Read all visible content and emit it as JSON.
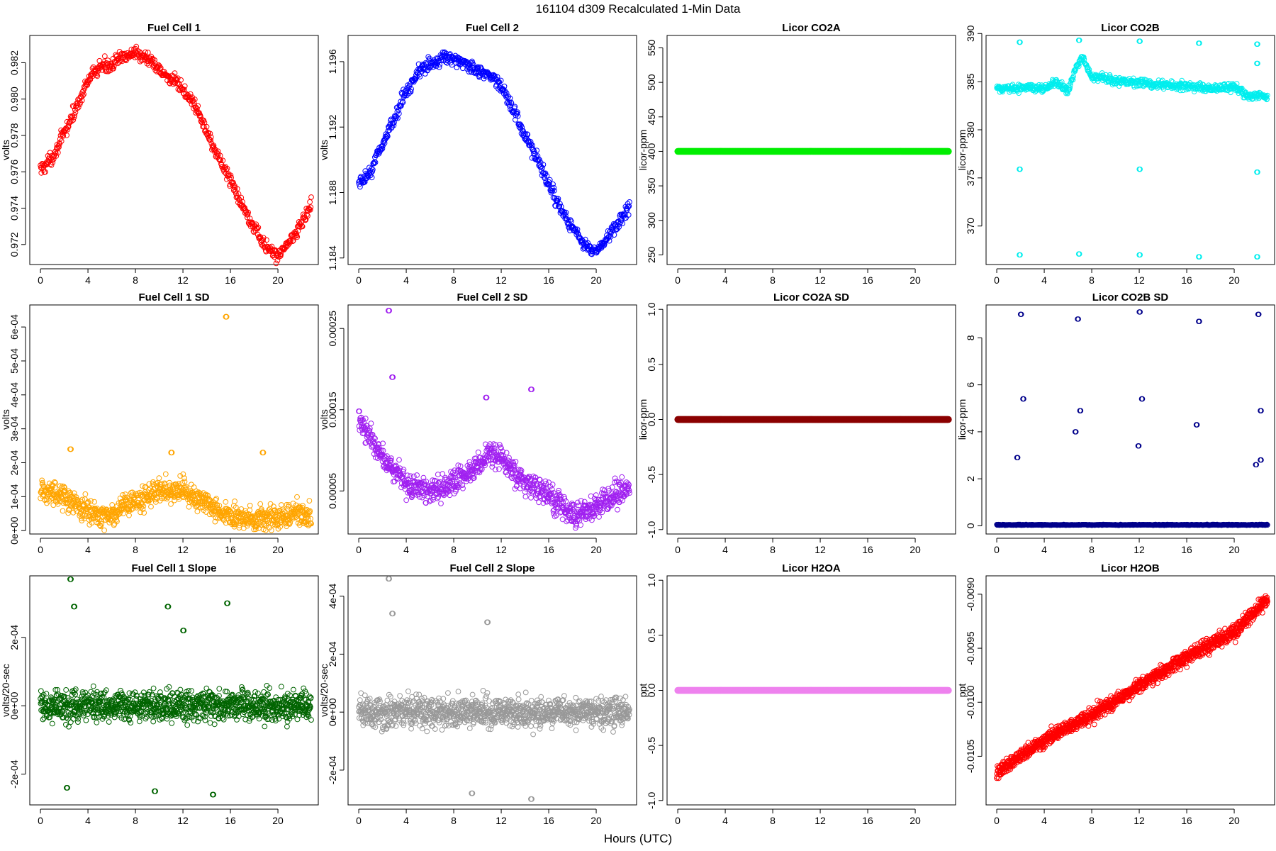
{
  "figure": {
    "title": "161104   d309   Recalculated 1-Min Data",
    "xlabel": "Hours (UTC)"
  },
  "chart_data": [
    {
      "type": "scatter",
      "title": "Fuel Cell 1",
      "ylabel": "volts",
      "color": "#ff0000",
      "xlim": [
        -0.9,
        23.4
      ],
      "ylim": [
        0.9709,
        0.9835
      ],
      "xticks": [
        0,
        4,
        8,
        12,
        16,
        20
      ],
      "xticklabels": [
        "0",
        "4",
        "8",
        "12",
        "16",
        "20"
      ],
      "yticks": [
        0.972,
        0.974,
        0.976,
        0.978,
        0.98,
        0.982
      ],
      "yticklabels": [
        "0.972",
        "0.974",
        "0.976",
        "0.978",
        "0.980",
        "0.982"
      ],
      "series": [
        {
          "x": [
            0,
            1,
            2,
            3,
            4,
            5,
            6,
            7,
            8,
            9,
            10,
            11,
            12,
            13,
            14,
            15,
            16,
            17,
            18,
            19,
            20,
            21,
            22,
            22.8
          ],
          "y": [
            0.9761,
            0.9768,
            0.9781,
            0.9795,
            0.981,
            0.9818,
            0.9819,
            0.9823,
            0.9826,
            0.9822,
            0.9816,
            0.9811,
            0.9805,
            0.9797,
            0.9782,
            0.9768,
            0.9755,
            0.9742,
            0.973,
            0.9718,
            0.9714,
            0.9722,
            0.9732,
            0.9742
          ]
        }
      ]
    },
    {
      "type": "scatter",
      "title": "Fuel Cell 2",
      "ylabel": "volts",
      "color": "#0000ff",
      "xlim": [
        -0.9,
        23.4
      ],
      "ylim": [
        1.1836,
        1.1976
      ],
      "xticks": [
        0,
        4,
        8,
        12,
        16,
        20
      ],
      "xticklabels": [
        "0",
        "4",
        "8",
        "12",
        "16",
        "20"
      ],
      "yticks": [
        1.184,
        1.188,
        1.192,
        1.196
      ],
      "yticklabels": [
        "1.184",
        "1.188",
        "1.192",
        "1.196"
      ],
      "series": [
        {
          "x": [
            0,
            1,
            2,
            3,
            4,
            5,
            6,
            7,
            8,
            9,
            10,
            11,
            12,
            13,
            14,
            15,
            16,
            17,
            18,
            19,
            20,
            21,
            22,
            22.8
          ],
          "y": [
            1.1884,
            1.1893,
            1.191,
            1.1925,
            1.1942,
            1.1954,
            1.1958,
            1.1963,
            1.1962,
            1.1958,
            1.1955,
            1.1952,
            1.1945,
            1.193,
            1.1915,
            1.19,
            1.1885,
            1.187,
            1.1858,
            1.1848,
            1.1843,
            1.1853,
            1.1862,
            1.1872
          ]
        }
      ]
    },
    {
      "type": "scatter",
      "title": "Licor CO2A",
      "ylabel": "licor-ppm",
      "color": "#00ee00",
      "xlim": [
        -0.9,
        23.4
      ],
      "ylim": [
        236,
        568
      ],
      "xticks": [
        0,
        4,
        8,
        12,
        16,
        20
      ],
      "xticklabels": [
        "0",
        "4",
        "8",
        "12",
        "16",
        "20"
      ],
      "yticks": [
        250,
        300,
        350,
        400,
        450,
        500,
        550
      ],
      "yticklabels": [
        "250",
        "300",
        "350",
        "400",
        "450",
        "500",
        "550"
      ],
      "series": [
        {
          "x": [
            0,
            22.8
          ],
          "y": [
            400,
            400
          ]
        }
      ]
    },
    {
      "type": "scatter",
      "title": "Licor CO2B",
      "ylabel": "licor-ppm",
      "color": "#00eeee",
      "xlim": [
        -0.9,
        23.4
      ],
      "ylim": [
        366.0,
        389.8
      ],
      "xticks": [
        0,
        4,
        8,
        12,
        16,
        20
      ],
      "xticklabels": [
        "0",
        "4",
        "8",
        "12",
        "16",
        "20"
      ],
      "yticks": [
        370,
        375,
        380,
        385,
        390
      ],
      "yticklabels": [
        "370",
        "375",
        "380",
        "385",
        "390"
      ],
      "series": [
        {
          "x": [
            0,
            2,
            4,
            5,
            6,
            6.8,
            7.2,
            8,
            10,
            12,
            14,
            16,
            18,
            20,
            21,
            22.8
          ],
          "y": [
            384.2,
            384.4,
            384.3,
            384.9,
            384.0,
            386.8,
            387.5,
            385.5,
            385.1,
            384.9,
            384.7,
            384.5,
            384.3,
            384.5,
            383.6,
            383.5
          ]
        }
      ],
      "outliers": {
        "x": [
          1.9,
          6.9,
          12.0,
          17.0,
          21.9
        ],
        "y": [
          [
            389.1,
            375.9,
            367.0
          ],
          [
            389.3,
            367.1
          ],
          [
            389.2,
            375.9,
            367.0
          ],
          [
            389.0,
            366.8
          ],
          [
            388.9,
            386.9,
            375.6,
            366.8
          ]
        ]
      }
    },
    {
      "type": "scatter",
      "title": "Fuel Cell 1 SD",
      "ylabel": "volts",
      "color": "#ffa500",
      "xlim": [
        -0.9,
        23.4
      ],
      "ylim": [
        -1e-05,
        0.000665
      ],
      "xticks": [
        0,
        4,
        8,
        12,
        16,
        20
      ],
      "xticklabels": [
        "0",
        "4",
        "8",
        "12",
        "16",
        "20"
      ],
      "yticks": [
        0,
        0.0001,
        0.0002,
        0.0003,
        0.0004,
        0.0005,
        0.0006
      ],
      "yticklabels": [
        "0e+00",
        "1e-04",
        "2e-04",
        "3e-04",
        "4e-04",
        "5e-04",
        "6e-04"
      ],
      "series": [
        {
          "x": [
            0,
            2,
            4,
            5,
            6,
            8,
            10,
            12,
            14,
            16,
            18,
            20,
            21,
            22.8
          ],
          "y": [
            0.00012,
            0.0001,
            6e-05,
            4e-05,
            5e-05,
            9e-05,
            0.00012,
            0.00012,
            8e-05,
            4e-05,
            3e-05,
            4e-05,
            5e-05,
            4e-05
          ]
        }
      ],
      "outliers": {
        "x": [
          15.6,
          2.5,
          11.0,
          18.7
        ],
        "y": [
          0.00063,
          0.00024,
          0.00023,
          0.00023
        ]
      }
    },
    {
      "type": "scatter",
      "title": "Fuel Cell 2 SD",
      "ylabel": "volts",
      "color": "#a020f0",
      "xlim": [
        -0.9,
        23.4
      ],
      "ylim": [
        -3e-06,
        0.000279
      ],
      "xticks": [
        0,
        4,
        8,
        12,
        16,
        20
      ],
      "xticklabels": [
        "0",
        "4",
        "8",
        "12",
        "16",
        "20"
      ],
      "yticks": [
        5e-05,
        0.00015,
        0.00025
      ],
      "yticklabels": [
        "0.00005",
        "0.00015",
        "0.00025"
      ],
      "series": [
        {
          "x": [
            0,
            1,
            2,
            4,
            6,
            8,
            10,
            11,
            12,
            14,
            16,
            18,
            20,
            22.8
          ],
          "y": [
            0.000135,
            0.000115,
            9e-05,
            6e-05,
            5e-05,
            6e-05,
            8e-05,
            9.5e-05,
            9e-05,
            6e-05,
            4.5e-05,
            2e-05,
            3e-05,
            5.5e-05
          ]
        }
      ],
      "outliers": {
        "x": [
          2.5,
          2.8,
          14.5,
          10.7
        ],
        "y": [
          0.000272,
          0.00019,
          0.000175,
          0.000165
        ]
      }
    },
    {
      "type": "scatter",
      "title": "Licor CO2A SD",
      "ylabel": "licor-ppm",
      "color": "#8b0000",
      "xlim": [
        -0.9,
        23.4
      ],
      "ylim": [
        -1.04,
        1.04
      ],
      "xticks": [
        0,
        4,
        8,
        12,
        16,
        20
      ],
      "xticklabels": [
        "0",
        "4",
        "8",
        "12",
        "16",
        "20"
      ],
      "yticks": [
        -1.0,
        -0.5,
        0.0,
        0.5,
        1.0
      ],
      "yticklabels": [
        "-1.0",
        "-0.5",
        "0.0",
        "0.5",
        "1.0"
      ],
      "series": [
        {
          "x": [
            0,
            22.8
          ],
          "y": [
            0,
            0
          ]
        }
      ]
    },
    {
      "type": "scatter",
      "title": "Licor CO2B SD",
      "ylabel": "licor-ppm",
      "color": "#00008b",
      "xlim": [
        -0.9,
        23.4
      ],
      "ylim": [
        -0.35,
        9.4
      ],
      "xticks": [
        0,
        4,
        8,
        12,
        16,
        20
      ],
      "xticklabels": [
        "0",
        "4",
        "8",
        "12",
        "16",
        "20"
      ],
      "yticks": [
        0,
        2,
        4,
        6,
        8
      ],
      "yticklabels": [
        "0",
        "2",
        "4",
        "6",
        "8"
      ],
      "series": [
        {
          "x": [
            0,
            22.8
          ],
          "y": [
            0.04,
            0.04
          ]
        }
      ],
      "outliers": {
        "x": [
          1.7,
          2.0,
          2.2,
          6.6,
          6.8,
          7.0,
          11.9,
          12.0,
          12.2,
          16.8,
          17.0,
          21.8,
          22.0,
          22.2,
          22.2
        ],
        "y": [
          2.9,
          9.0,
          5.4,
          4.0,
          8.8,
          4.9,
          3.4,
          9.1,
          5.4,
          4.3,
          8.7,
          2.6,
          9.0,
          4.9,
          2.8
        ]
      }
    },
    {
      "type": "scatter",
      "title": "Fuel Cell 1 Slope",
      "ylabel": "volts/20-sec",
      "color": "#006400",
      "xlim": [
        -0.9,
        23.4
      ],
      "ylim": [
        -0.00029,
        0.00038
      ],
      "xticks": [
        0,
        4,
        8,
        12,
        16,
        20
      ],
      "xticklabels": [
        "0",
        "4",
        "8",
        "12",
        "16",
        "20"
      ],
      "yticks": [
        -0.0002,
        0,
        0.0002
      ],
      "yticklabels": [
        "-2e-04",
        "0e+00",
        "2e-04"
      ],
      "series": [
        {
          "x": [
            0,
            22.8
          ],
          "y": [
            0,
            0
          ]
        }
      ],
      "outliers": {
        "x": [
          2.5,
          2.8,
          10.7,
          12.0,
          15.7,
          9.6,
          14.5,
          2.2
        ],
        "y": [
          0.00037,
          0.00029,
          0.00029,
          0.00022,
          0.0003,
          -0.00025,
          -0.00026,
          -0.00024
        ]
      }
    },
    {
      "type": "scatter",
      "title": "Fuel Cell 2 Slope",
      "ylabel": "volts/20-sec",
      "color": "#999999",
      "xlim": [
        -0.9,
        23.4
      ],
      "ylim": [
        -0.00032,
        0.00047
      ],
      "xticks": [
        0,
        4,
        8,
        12,
        16,
        20
      ],
      "xticklabels": [
        "0",
        "4",
        "8",
        "12",
        "16",
        "20"
      ],
      "yticks": [
        -0.0002,
        0,
        0.0002,
        0.0004
      ],
      "yticklabels": [
        "-2e-04",
        "0e+00",
        "2e-04",
        "4e-04"
      ],
      "series": [
        {
          "x": [
            0,
            22.8
          ],
          "y": [
            0,
            0
          ]
        }
      ],
      "outliers": {
        "x": [
          2.5,
          2.8,
          10.8,
          14.5,
          9.5
        ],
        "y": [
          0.00046,
          0.00034,
          0.00031,
          -0.0003,
          -0.00028
        ]
      }
    },
    {
      "type": "scatter",
      "title": "Licor H2OA",
      "ylabel": "ppt",
      "color": "#ee82ee",
      "xlim": [
        -0.9,
        23.4
      ],
      "ylim": [
        -1.04,
        1.04
      ],
      "xticks": [
        0,
        4,
        8,
        12,
        16,
        20
      ],
      "xticklabels": [
        "0",
        "4",
        "8",
        "12",
        "16",
        "20"
      ],
      "yticks": [
        -1.0,
        -0.5,
        0.0,
        0.5,
        1.0
      ],
      "yticklabels": [
        "-1.0",
        "-0.5",
        "0.0",
        "0.5",
        "1.0"
      ],
      "series": [
        {
          "x": [
            0,
            22.8
          ],
          "y": [
            0,
            0
          ]
        }
      ]
    },
    {
      "type": "scatter",
      "title": "Licor H2OB",
      "ylabel": "ppt",
      "color": "#ff0000",
      "xlim": [
        -0.9,
        23.4
      ],
      "ylim": [
        -0.01095,
        -0.00883
      ],
      "xticks": [
        0,
        4,
        8,
        12,
        16,
        20
      ],
      "xticklabels": [
        "0",
        "4",
        "8",
        "12",
        "16",
        "20"
      ],
      "yticks": [
        -0.0105,
        -0.01,
        -0.0095,
        -0.009
      ],
      "yticklabels": [
        "-0.0105",
        "-0.0100",
        "-0.0095",
        "-0.0090"
      ],
      "series": [
        {
          "x": [
            0,
            4,
            8,
            12,
            16,
            20,
            22.8
          ],
          "y": [
            -0.01065,
            -0.01035,
            -0.01012,
            -0.00985,
            -0.00958,
            -0.00935,
            -0.00905
          ]
        }
      ]
    }
  ]
}
